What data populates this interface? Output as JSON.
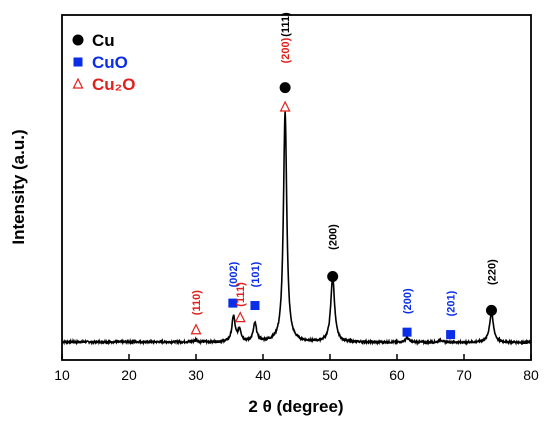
{
  "chart_data": {
    "type": "line",
    "xlabel": "2 θ (degree)",
    "ylabel": "Intensity (a.u.)",
    "xlim": [
      10,
      80
    ],
    "x_ticks": [
      "10",
      "20",
      "30",
      "40",
      "50",
      "60",
      "70",
      "80"
    ],
    "y_ticks_labeled": false,
    "grid": false,
    "legend_position": "top-left",
    "colors": {
      "Cu": "#000000",
      "CuO": "#0a2ee8",
      "Cu2O": "#e0201c",
      "line": "#000000",
      "hkl_Cu": "#000000"
    },
    "legend": [
      {
        "key": "Cu",
        "label": "Cu",
        "marker": "filled-circle"
      },
      {
        "key": "CuO",
        "label": "CuO",
        "marker": "filled-square"
      },
      {
        "key": "Cu2O",
        "label": "Cu₂O",
        "marker": "open-triangle"
      }
    ],
    "baseline_intensity": 10,
    "peaks": [
      {
        "center": 30.0,
        "height": 2,
        "width": 0.25
      },
      {
        "center": 35.6,
        "height": 21,
        "width": 0.28
      },
      {
        "center": 36.5,
        "height": 10,
        "width": 0.28
      },
      {
        "center": 38.8,
        "height": 15,
        "width": 0.3
      },
      {
        "center": 43.3,
        "height": 190,
        "width": 0.3
      },
      {
        "center": 50.4,
        "height": 54,
        "width": 0.34
      },
      {
        "center": 61.5,
        "height": 4,
        "width": 0.3
      },
      {
        "center": 66.5,
        "height": 2,
        "width": 0.3
      },
      {
        "center": 74.1,
        "height": 24,
        "width": 0.36
      }
    ],
    "annotations": [
      {
        "phase": "Cu2O",
        "x": 30.0,
        "marker_y": 20,
        "hkl": "(110)",
        "label_y": 32
      },
      {
        "phase": "CuO",
        "x": 35.5,
        "marker_y": 42,
        "hkl": "(002)",
        "label_y": 55
      },
      {
        "phase": "Cu2O",
        "x": 36.6,
        "marker_y": 30,
        "hkl": "(111)",
        "label_y": 39
      },
      {
        "phase": "CuO",
        "x": 38.8,
        "marker_y": 40,
        "hkl": "(101)",
        "label_y": 55
      },
      {
        "phase": "Cu",
        "x": 43.3,
        "marker_y": 220,
        "hkl": "(111)",
        "label_y": 262
      },
      {
        "phase": "Cu2O",
        "x": 43.3,
        "marker_y": 204,
        "hkl": "(200)",
        "label_y": 240
      },
      {
        "phase": "Cu",
        "x": 50.4,
        "marker_y": 64,
        "hkl": "(200)",
        "label_y": 86
      },
      {
        "phase": "CuO",
        "x": 61.5,
        "marker_y": 18,
        "hkl": "(200)",
        "label_y": 33
      },
      {
        "phase": "CuO",
        "x": 68.0,
        "marker_y": 16,
        "hkl": "(201)",
        "label_y": 31
      },
      {
        "phase": "Cu",
        "x": 74.1,
        "marker_y": 36,
        "hkl": "(220)",
        "label_y": 57
      }
    ],
    "ylim": [
      -5,
      280
    ]
  }
}
